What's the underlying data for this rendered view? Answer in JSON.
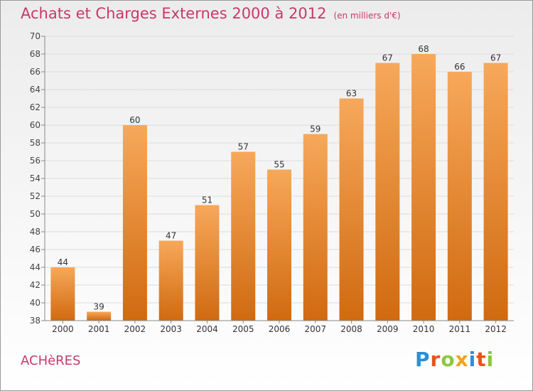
{
  "header": {
    "title": "Achats et Charges Externes 2000 à 2012",
    "subtitle": "(en milliers d'€)"
  },
  "footer": {
    "commune": "ACHèRES",
    "logo_letters": [
      {
        "ch": "P",
        "color": "#2b8fd6"
      },
      {
        "ch": "r",
        "color": "#e8531c"
      },
      {
        "ch": "o",
        "color": "#8cc63e"
      },
      {
        "ch": "x",
        "color": "#f4a21d"
      },
      {
        "ch": "i",
        "color": "#2b8fd6"
      },
      {
        "ch": "t",
        "color": "#e8531c"
      },
      {
        "ch": "i",
        "color": "#8cc63e"
      }
    ]
  },
  "colors": {
    "bar_top": "#f7a85a",
    "bar_bottom": "#d06a10",
    "grid": "#dcdcdc",
    "axis": "#888888",
    "title": "#c8386b"
  },
  "chart_data": {
    "type": "bar",
    "categories": [
      "2000",
      "2001",
      "2002",
      "2003",
      "2004",
      "2005",
      "2006",
      "2007",
      "2008",
      "2009",
      "2010",
      "2011",
      "2012"
    ],
    "values": [
      44,
      39,
      60,
      47,
      51,
      57,
      55,
      59,
      63,
      67,
      68,
      66,
      67
    ],
    "data_labels": [
      "44",
      "39",
      "60",
      "47",
      "51",
      "57",
      "55",
      "59",
      "63",
      "67",
      "68",
      "66",
      "67"
    ],
    "ylim": [
      38,
      70
    ],
    "yticks": [
      "38",
      "40",
      "42",
      "44",
      "46",
      "48",
      "50",
      "52",
      "54",
      "56",
      "58",
      "60",
      "62",
      "64",
      "66",
      "68",
      "70"
    ],
    "grid": true,
    "legend": "none"
  }
}
